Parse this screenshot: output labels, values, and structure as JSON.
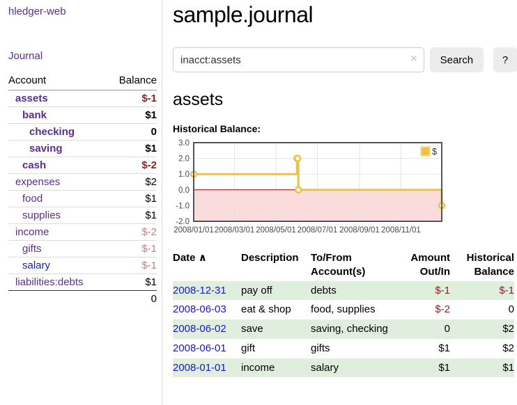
{
  "colors": {
    "link_purple": "#5c2d91",
    "link_blue": "#1515dd",
    "negative_red": "#8f1d1d",
    "soft_negative_red": "#c87e7e",
    "row_green": "#e0eedd",
    "button_gray": "#ececec"
  },
  "sidebar": {
    "app_title": "hledger-web",
    "journal_link": "Journal",
    "accounts": {
      "header_account": "Account",
      "header_balance": "Balance",
      "rows": [
        {
          "account": "assets",
          "balance": "$-1",
          "indent": 1,
          "bold": true,
          "balance_class": "neg"
        },
        {
          "account": "bank",
          "balance": "$1",
          "indent": 2,
          "bold": true,
          "balance_class": ""
        },
        {
          "account": "checking",
          "balance": "0",
          "indent": 3,
          "bold": true,
          "balance_class": ""
        },
        {
          "account": "saving",
          "balance": "$1",
          "indent": 3,
          "bold": true,
          "balance_class": ""
        },
        {
          "account": "cash",
          "balance": "$-2",
          "indent": 2,
          "bold": true,
          "balance_class": "neg"
        },
        {
          "account": "expenses",
          "balance": "$2",
          "indent": 1,
          "bold": false,
          "balance_class": ""
        },
        {
          "account": "food",
          "balance": "$1",
          "indent": 2,
          "bold": false,
          "balance_class": ""
        },
        {
          "account": "supplies",
          "balance": "$1",
          "indent": 2,
          "bold": false,
          "balance_class": ""
        },
        {
          "account": "income",
          "balance": "$-2",
          "indent": 1,
          "bold": false,
          "balance_class": "soft"
        },
        {
          "account": "gifts",
          "balance": "$-1",
          "indent": 2,
          "bold": false,
          "balance_class": "soft"
        },
        {
          "account": "salary",
          "balance": "$-1",
          "indent": 2,
          "bold": false,
          "balance_class": "soft",
          "blue": true
        },
        {
          "account": "liabilities:debts",
          "balance": "$1",
          "indent": 1,
          "bold": false,
          "balance_class": ""
        }
      ],
      "total": "0"
    }
  },
  "main": {
    "title": "sample.journal",
    "search": {
      "value": "inacct:assets",
      "clear_icon": "×",
      "button_label": "Search",
      "help_label": "?"
    },
    "account_heading": "assets",
    "chart_label": "Historical Balance:"
  },
  "chart_data": {
    "type": "line",
    "step": true,
    "title": "Historical Balance:",
    "xlim": [
      "2008-01-01",
      "2008-12-31"
    ],
    "ylim": [
      -2,
      3
    ],
    "x_ticks": [
      {
        "date": "2008-01-01",
        "label": "2008/01/01"
      },
      {
        "date": "2008-03-01",
        "label": "2008/03/01"
      },
      {
        "date": "2008-05-01",
        "label": "2008/05/01"
      },
      {
        "date": "2008-07-01",
        "label": "2008/07/01"
      },
      {
        "date": "2008-09-01",
        "label": "2008/09/01"
      },
      {
        "date": "2008-11-01",
        "label": "2008/11/01"
      }
    ],
    "y_ticks": [
      {
        "v": 3,
        "label": "3.0"
      },
      {
        "v": 2,
        "label": "2.0"
      },
      {
        "v": 1,
        "label": "1.0"
      },
      {
        "v": 0,
        "label": "0.0"
      },
      {
        "v": -1,
        "label": "-1.0"
      },
      {
        "v": -2,
        "label": "-2.0"
      }
    ],
    "series": [
      {
        "name": "$",
        "color": "#edc240",
        "points": [
          [
            "2008-01-01",
            1
          ],
          [
            "2008-06-01",
            2
          ],
          [
            "2008-06-02",
            2
          ],
          [
            "2008-06-03",
            0
          ],
          [
            "2008-12-31",
            -1
          ]
        ]
      }
    ],
    "legend": {
      "label": "$",
      "swatch_color": "#edc240",
      "position": "top-right"
    },
    "grid": true,
    "grid_color": "#e3e3e3",
    "plot_border_color": "#545454",
    "zero_line_color": "#8b0000",
    "negative_region_color": "#fbdcdc",
    "axis_text_color": "#494949"
  },
  "transactions": {
    "headers": [
      "Date",
      "Description",
      "To/From Account(s)",
      "Amount Out/In",
      "Historical Balance"
    ],
    "sort_indicator": "∧",
    "rows": [
      {
        "date": "2008-12-31",
        "description": "pay off",
        "accounts": "debts",
        "amount": "$-1",
        "balance": "$-1"
      },
      {
        "date": "2008-06-03",
        "description": "eat & shop",
        "accounts": "food, supplies",
        "amount": "$-2",
        "balance": "0"
      },
      {
        "date": "2008-06-02",
        "description": "save",
        "accounts": "saving, checking",
        "amount": "0",
        "balance": "$2"
      },
      {
        "date": "2008-06-01",
        "description": "gift",
        "accounts": "gifts",
        "amount": "$1",
        "balance": "$2"
      },
      {
        "date": "2008-01-01",
        "description": "income",
        "accounts": "salary",
        "amount": "$1",
        "balance": "$1"
      }
    ]
  }
}
